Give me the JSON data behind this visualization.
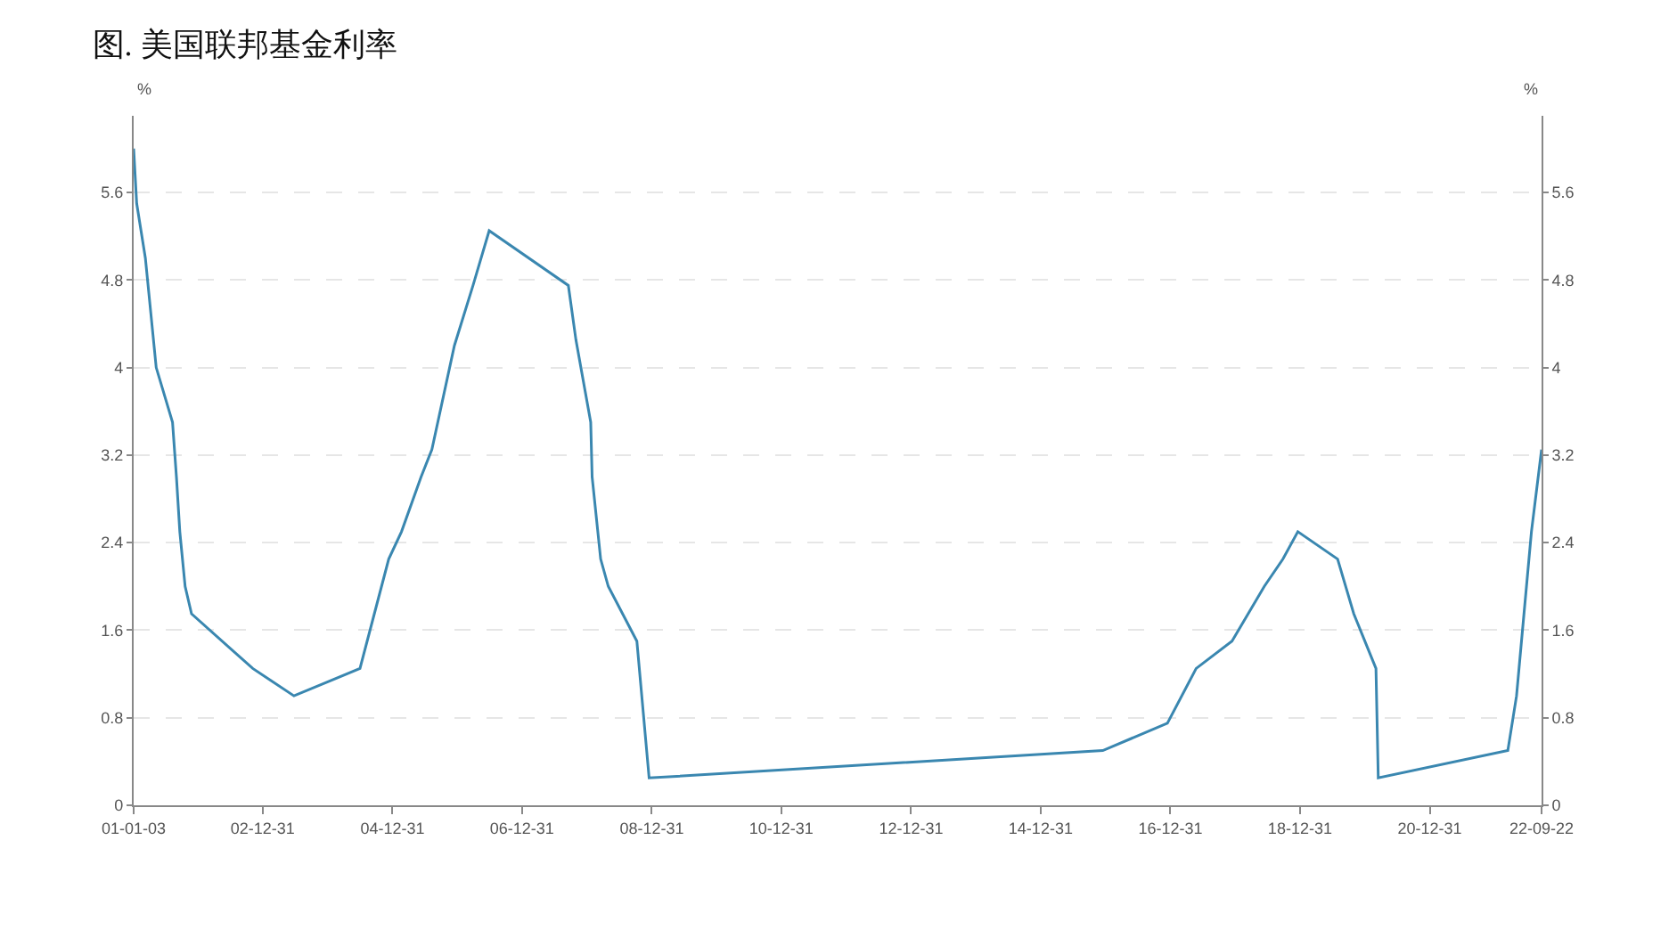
{
  "chart_data": {
    "type": "line",
    "title": "图. 美国联邦基金利率",
    "ylabel": "%",
    "y2label": "%",
    "x": [
      "2001-01-03",
      "2001-01-20",
      "2001-03-10",
      "2001-05-10",
      "2001-08-10",
      "2001-09-01",
      "2001-09-20",
      "2001-10-20",
      "2001-11-25",
      "2002-11-05",
      "2003-06-25",
      "2004-07-01",
      "2004-09-20",
      "2004-12-10",
      "2005-02-20",
      "2005-06-10",
      "2005-08-10",
      "2005-12-15",
      "2006-03-30",
      "2006-06-29",
      "2007-09-18",
      "2007-10-31",
      "2008-01-22",
      "2008-01-30",
      "2008-03-18",
      "2008-04-30",
      "2008-10-08",
      "2008-12-16",
      "2015-12-16",
      "2016-12-14",
      "2017-05-25",
      "2017-12-13",
      "2018-06-13",
      "2018-09-26",
      "2018-12-19",
      "2019-07-31",
      "2019-10-30",
      "2020-03-03",
      "2020-03-16",
      "2022-03-16",
      "2022-05-04",
      "2022-07-27",
      "2022-09-22"
    ],
    "series": [
      {
        "color": "#3a87b0",
        "values": [
          6.0,
          5.5,
          5.0,
          4.0,
          3.5,
          3.0,
          2.5,
          2.0,
          1.75,
          1.25,
          1.0,
          1.25,
          1.75,
          2.25,
          2.5,
          3.0,
          3.25,
          4.2,
          4.75,
          5.25,
          4.75,
          4.25,
          3.5,
          3.0,
          2.25,
          2.0,
          1.5,
          0.25,
          0.5,
          0.75,
          1.25,
          1.5,
          2.0,
          2.25,
          2.5,
          2.25,
          1.75,
          1.25,
          0.25,
          0.5,
          1.0,
          2.5,
          3.25
        ]
      }
    ],
    "xlim": [
      "2001-01-03",
      "2022-09-22"
    ],
    "xticks": [
      {
        "value": "2001-01-03",
        "label": "01-01-03"
      },
      {
        "value": "2002-12-31",
        "label": "02-12-31"
      },
      {
        "value": "2004-12-31",
        "label": "04-12-31"
      },
      {
        "value": "2006-12-31",
        "label": "06-12-31"
      },
      {
        "value": "2008-12-31",
        "label": "08-12-31"
      },
      {
        "value": "2010-12-31",
        "label": "10-12-31"
      },
      {
        "value": "2012-12-31",
        "label": "12-12-31"
      },
      {
        "value": "2014-12-31",
        "label": "14-12-31"
      },
      {
        "value": "2016-12-31",
        "label": "16-12-31"
      },
      {
        "value": "2018-12-31",
        "label": "18-12-31"
      },
      {
        "value": "2020-12-31",
        "label": "20-12-31"
      },
      {
        "value": "2022-09-22",
        "label": "22-09-22"
      }
    ],
    "ylim": [
      0,
      6.3
    ],
    "yticks": [
      0,
      0.8,
      1.6,
      2.4,
      3.2,
      4,
      4.8,
      5.6
    ],
    "y2lim": [
      0,
      6.3
    ],
    "y2ticks": [
      0,
      0.8,
      1.6,
      2.4,
      3.2,
      4,
      4.8,
      5.6
    ],
    "grid": "y",
    "marker": "none",
    "line_style": "solid"
  }
}
